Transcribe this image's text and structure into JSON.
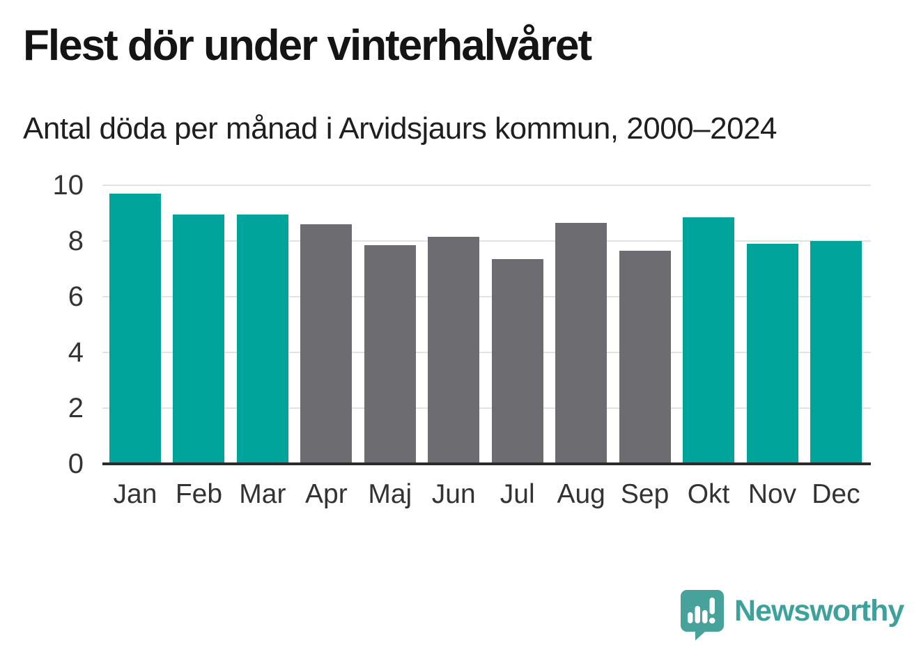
{
  "header": {
    "title": "Flest dör under vinterhalvåret",
    "subtitle": "Antal döda per månad i Arvidsjaurs kommun, 2000–2024"
  },
  "chart_data": {
    "type": "bar",
    "title": "Flest dör under vinterhalvåret",
    "subtitle": "Antal döda per månad i Arvidsjaurs kommun, 2000–2024",
    "categories": [
      "Jan",
      "Feb",
      "Mar",
      "Apr",
      "Maj",
      "Jun",
      "Jul",
      "Aug",
      "Sep",
      "Okt",
      "Nov",
      "Dec"
    ],
    "values": [
      9.7,
      8.95,
      8.95,
      8.6,
      7.85,
      8.15,
      7.35,
      8.65,
      7.65,
      8.85,
      7.9,
      8.0
    ],
    "xlabel": "",
    "ylabel": "",
    "ylim": [
      0,
      10
    ],
    "yticks": [
      0,
      2,
      4,
      6,
      8,
      10
    ],
    "grid": true,
    "legend": false,
    "winter_color": "#00a49b",
    "summer_color": "#6c6c71",
    "bar_colors": [
      "#00a49b",
      "#00a49b",
      "#00a49b",
      "#6c6c71",
      "#6c6c71",
      "#6c6c71",
      "#6c6c71",
      "#6c6c71",
      "#6c6c71",
      "#00a49b",
      "#00a49b",
      "#00a49b"
    ],
    "highlighted_categories": [
      "Jan",
      "Feb",
      "Mar",
      "Okt",
      "Nov",
      "Dec"
    ]
  },
  "footer": {
    "brand": "Newsworthy",
    "brand_color": "#3da19c",
    "logo_color": "#47a29c"
  }
}
